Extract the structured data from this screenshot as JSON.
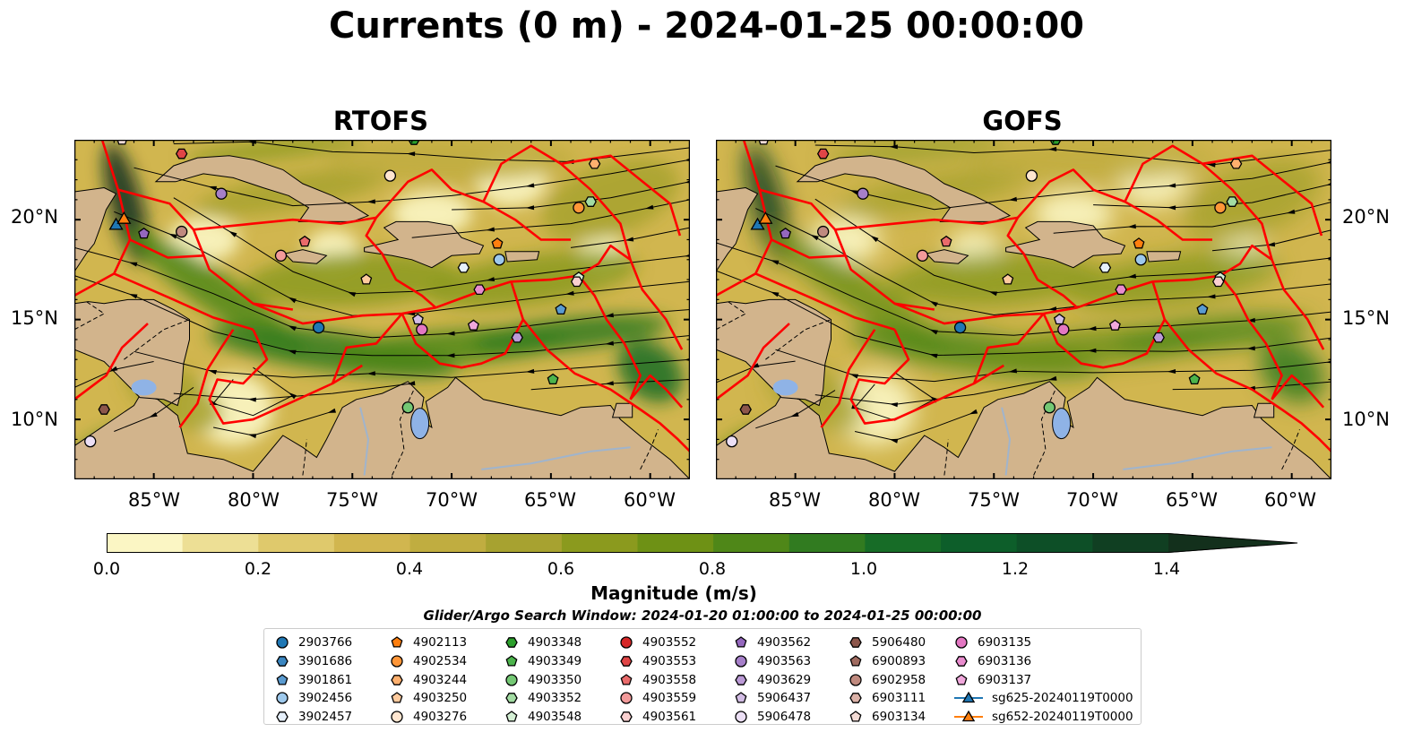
{
  "suptitle": "Currents (0 m) - 2024-01-25 00:00:00",
  "panels": [
    {
      "title": "RTOFS"
    },
    {
      "title": "GOFS"
    }
  ],
  "axes": {
    "lat_labels": [
      "20°N",
      "15°N",
      "10°N"
    ],
    "lon_labels": [
      "85°W",
      "80°W",
      "75°W",
      "70°W",
      "65°W",
      "60°W"
    ],
    "lon_range": [
      -89.0,
      -58.0
    ],
    "lat_range": [
      7.0,
      24.0
    ]
  },
  "colorbar": {
    "label": "Magnitude (m/s)",
    "ticks": [
      "0.0",
      "0.2",
      "0.4",
      "0.6",
      "0.8",
      "1.0",
      "1.2",
      "1.4"
    ],
    "range": [
      0.0,
      1.5
    ],
    "extend": "max",
    "colors": [
      "#fbf6c4",
      "#eddf95",
      "#dfc96c",
      "#d1b64f",
      "#c0ad40",
      "#a7a230",
      "#8b9a1e",
      "#6e9115",
      "#4f8718",
      "#317b20",
      "#176c27",
      "#0d5e2a",
      "#0d4f27",
      "#103f22",
      "#13301c"
    ]
  },
  "colors": {
    "land": "#d2b48c",
    "eez": "#ff0000",
    "lake": "#8fb3e6",
    "river": "#a0b4cc"
  },
  "search_window": "Glider/Argo Search Window: 2024-01-20 01:00:00 to 2024-01-25 00:00:00",
  "legend": {
    "columns": [
      [
        {
          "label": "2903766",
          "marker": "circle",
          "color": "#1f77b4"
        },
        {
          "label": "3901686",
          "marker": "hexagon",
          "color": "#3a86c1"
        },
        {
          "label": "3901861",
          "marker": "pentagon",
          "color": "#5a9bd0"
        },
        {
          "label": "3902456",
          "marker": "circle",
          "color": "#9ec9ec"
        },
        {
          "label": "3902457",
          "marker": "hexagon",
          "color": "#e6f0fb"
        }
      ],
      [
        {
          "label": "4902113",
          "marker": "pentagon",
          "color": "#ff7f0e"
        },
        {
          "label": "4902534",
          "marker": "circle",
          "color": "#ff9638"
        },
        {
          "label": "4903244",
          "marker": "hexagon",
          "color": "#ffb06e"
        },
        {
          "label": "4903250",
          "marker": "pentagon",
          "color": "#ffcb9e"
        },
        {
          "label": "4903276",
          "marker": "circle",
          "color": "#ffe6d0"
        }
      ],
      [
        {
          "label": "4903348",
          "marker": "hexagon",
          "color": "#2ca02c"
        },
        {
          "label": "4903349",
          "marker": "pentagon",
          "color": "#4cb44c"
        },
        {
          "label": "4903350",
          "marker": "circle",
          "color": "#74c874"
        },
        {
          "label": "4903352",
          "marker": "hexagon",
          "color": "#a3dca3"
        },
        {
          "label": "4903548",
          "marker": "pentagon",
          "color": "#d5f0d5"
        }
      ],
      [
        {
          "label": "4903552",
          "marker": "circle",
          "color": "#d62728"
        },
        {
          "label": "4903553",
          "marker": "hexagon",
          "color": "#e04546"
        },
        {
          "label": "4903558",
          "marker": "pentagon",
          "color": "#ea6b6b"
        },
        {
          "label": "4903559",
          "marker": "circle",
          "color": "#f29a9a"
        },
        {
          "label": "4903561",
          "marker": "hexagon",
          "color": "#fad0d0"
        }
      ],
      [
        {
          "label": "4903562",
          "marker": "pentagon",
          "color": "#9467bd"
        },
        {
          "label": "4903563",
          "marker": "circle",
          "color": "#a67fc9"
        },
        {
          "label": "4903629",
          "marker": "hexagon",
          "color": "#bb9ad6"
        },
        {
          "label": "5906437",
          "marker": "pentagon",
          "color": "#d3bde5"
        },
        {
          "label": "5906478",
          "marker": "circle",
          "color": "#ecdff5"
        }
      ],
      [
        {
          "label": "5906480",
          "marker": "hexagon",
          "color": "#8c564b"
        },
        {
          "label": "6900893",
          "marker": "pentagon",
          "color": "#a06b60"
        },
        {
          "label": "6902958",
          "marker": "circle",
          "color": "#c08a7f"
        },
        {
          "label": "6903111",
          "marker": "hexagon",
          "color": "#dcb2a8"
        },
        {
          "label": "6903134",
          "marker": "pentagon",
          "color": "#f3dbd5"
        }
      ],
      [
        {
          "label": "6903135",
          "marker": "circle",
          "color": "#e377c2"
        },
        {
          "label": "6903136",
          "marker": "hexagon",
          "color": "#e98cce"
        },
        {
          "label": "6903137",
          "marker": "pentagon",
          "color": "#f0a8dc"
        },
        {
          "label": "sg625-20240119T0000",
          "marker": "triangle-line",
          "color": "#1f77b4"
        },
        {
          "label": "sg652-20240119T0000",
          "marker": "triangle-line",
          "color": "#ff7f0e"
        }
      ]
    ]
  },
  "floats": [
    {
      "id": "2903766",
      "lon": -76.7,
      "lat": 14.6
    },
    {
      "id": "3901686",
      "lon": -72.2,
      "lat": 10.6
    },
    {
      "id": "3901861",
      "lon": -64.5,
      "lat": 15.5
    },
    {
      "id": "3902456",
      "lon": -67.6,
      "lat": 18.0
    },
    {
      "id": "3902457",
      "lon": -69.4,
      "lat": 17.6
    },
    {
      "id": "4902113",
      "lon": -67.7,
      "lat": 18.8
    },
    {
      "id": "4902534",
      "lon": -63.6,
      "lat": 20.6
    },
    {
      "id": "4903244",
      "lon": -62.8,
      "lat": 22.8
    },
    {
      "id": "4903250",
      "lon": -74.3,
      "lat": 17.0
    },
    {
      "id": "4903276",
      "lon": -73.1,
      "lat": 22.2
    },
    {
      "id": "4903348",
      "lon": -71.9,
      "lat": 24.0
    },
    {
      "id": "4903349",
      "lon": -64.9,
      "lat": 12.0
    },
    {
      "id": "4903350",
      "lon": -72.2,
      "lat": 10.6
    },
    {
      "id": "4903352",
      "lon": -63.0,
      "lat": 20.9
    },
    {
      "id": "4903548",
      "lon": -63.6,
      "lat": 17.1
    },
    {
      "id": "4903553",
      "lon": -83.6,
      "lat": 23.3
    },
    {
      "id": "4903558",
      "lon": -77.4,
      "lat": 18.9
    },
    {
      "id": "4903559",
      "lon": -78.6,
      "lat": 18.2
    },
    {
      "id": "4903561",
      "lon": -63.7,
      "lat": 16.9
    },
    {
      "id": "4903562",
      "lon": -85.5,
      "lat": 19.3
    },
    {
      "id": "4903563",
      "lon": -81.6,
      "lat": 21.3
    },
    {
      "id": "4903629",
      "lon": -66.7,
      "lat": 14.1
    },
    {
      "id": "5906437",
      "lon": -71.7,
      "lat": 15.0
    },
    {
      "id": "5906478",
      "lon": -88.2,
      "lat": 8.9
    },
    {
      "id": "5906480",
      "lon": -87.5,
      "lat": 10.5
    },
    {
      "id": "6902958",
      "lon": -83.6,
      "lat": 19.4
    },
    {
      "id": "6903134",
      "lon": -86.6,
      "lat": 24.0
    },
    {
      "id": "6903135",
      "lon": -71.5,
      "lat": 14.5
    },
    {
      "id": "6903136",
      "lon": -68.6,
      "lat": 16.5
    },
    {
      "id": "6903137",
      "lon": -68.9,
      "lat": 14.7
    }
  ],
  "gliders": [
    {
      "id": "sg625-20240119T0000",
      "lon": -86.9,
      "lat": 19.7,
      "color": "#1f77b4"
    },
    {
      "id": "sg652-20240119T0000",
      "lon": -86.5,
      "lat": 20.0,
      "color": "#ff7f0e"
    }
  ]
}
